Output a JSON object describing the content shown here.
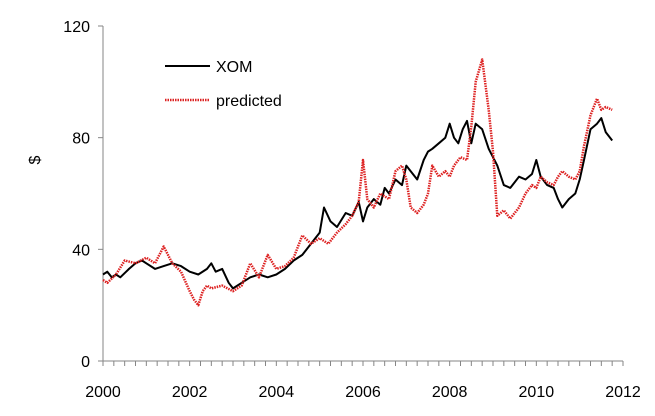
{
  "chart_data": {
    "type": "line",
    "ylabel": "$",
    "xlim": [
      2000,
      2012
    ],
    "ylim": [
      0,
      120
    ],
    "x_ticks": [
      2000,
      2002,
      2004,
      2006,
      2008,
      2010,
      2012
    ],
    "y_ticks": [
      0,
      40,
      80,
      120
    ],
    "legend_position": "top-left",
    "grid": false,
    "series": [
      {
        "name": "XOM",
        "color": "#000000",
        "x": [
          2000.0,
          2000.1,
          2000.2,
          2000.3,
          2000.4,
          2000.6,
          2000.75,
          2000.9,
          2001.0,
          2001.2,
          2001.4,
          2001.6,
          2001.8,
          2002.0,
          2002.2,
          2002.4,
          2002.5,
          2002.6,
          2002.75,
          2002.9,
          2003.0,
          2003.2,
          2003.4,
          2003.6,
          2003.8,
          2004.0,
          2004.2,
          2004.4,
          2004.6,
          2004.8,
          2005.0,
          2005.1,
          2005.25,
          2005.4,
          2005.6,
          2005.75,
          2005.9,
          2006.0,
          2006.1,
          2006.25,
          2006.4,
          2006.5,
          2006.6,
          2006.75,
          2006.9,
          2007.0,
          2007.1,
          2007.25,
          2007.4,
          2007.5,
          2007.6,
          2007.75,
          2007.9,
          2008.0,
          2008.1,
          2008.2,
          2008.3,
          2008.4,
          2008.5,
          2008.6,
          2008.75,
          2008.9,
          2009.0,
          2009.1,
          2009.25,
          2009.4,
          2009.5,
          2009.6,
          2009.75,
          2009.9,
          2010.0,
          2010.1,
          2010.25,
          2010.4,
          2010.5,
          2010.6,
          2010.75,
          2010.9,
          2011.0,
          2011.1,
          2011.25,
          2011.4,
          2011.5,
          2011.6,
          2011.75
        ],
        "y": [
          31,
          32,
          30,
          31,
          30,
          33,
          35,
          36,
          35,
          33,
          34,
          35,
          34,
          32,
          31,
          33,
          35,
          32,
          33,
          28,
          26,
          28,
          30,
          31,
          30,
          31,
          33,
          36,
          38,
          42,
          46,
          55,
          50,
          48,
          53,
          52,
          57,
          50,
          55,
          58,
          56,
          62,
          60,
          65,
          63,
          70,
          68,
          65,
          72,
          75,
          76,
          78,
          80,
          85,
          80,
          78,
          83,
          86,
          78,
          85,
          83,
          76,
          73,
          70,
          63,
          62,
          64,
          66,
          65,
          67,
          72,
          66,
          63,
          62,
          58,
          55,
          58,
          60,
          65,
          72,
          83,
          85,
          87,
          82,
          79
        ]
      },
      {
        "name": "predicted",
        "color": "#dd2222",
        "x": [
          2000.0,
          2000.1,
          2000.3,
          2000.5,
          2000.75,
          2001.0,
          2001.2,
          2001.4,
          2001.6,
          2001.8,
          2002.0,
          2002.1,
          2002.2,
          2002.3,
          2002.4,
          2002.5,
          2002.75,
          2003.0,
          2003.2,
          2003.4,
          2003.6,
          2003.8,
          2004.0,
          2004.2,
          2004.4,
          2004.6,
          2004.8,
          2005.0,
          2005.2,
          2005.4,
          2005.6,
          2005.75,
          2005.9,
          2006.0,
          2006.1,
          2006.25,
          2006.4,
          2006.6,
          2006.75,
          2006.9,
          2007.0,
          2007.1,
          2007.25,
          2007.4,
          2007.5,
          2007.6,
          2007.75,
          2007.9,
          2008.0,
          2008.1,
          2008.25,
          2008.4,
          2008.5,
          2008.6,
          2008.75,
          2008.9,
          2009.0,
          2009.1,
          2009.25,
          2009.4,
          2009.5,
          2009.6,
          2009.75,
          2009.9,
          2010.0,
          2010.1,
          2010.25,
          2010.4,
          2010.5,
          2010.6,
          2010.75,
          2010.9,
          2011.0,
          2011.1,
          2011.25,
          2011.4,
          2011.5,
          2011.6,
          2011.75
        ],
        "y": [
          29,
          28,
          31,
          36,
          35,
          37,
          35,
          41,
          35,
          32,
          25,
          22,
          20,
          25,
          27,
          26,
          27,
          25,
          27,
          35,
          30,
          38,
          33,
          34,
          37,
          45,
          42,
          44,
          42,
          46,
          49,
          52,
          57,
          72,
          58,
          55,
          60,
          58,
          68,
          70,
          65,
          55,
          53,
          56,
          60,
          70,
          66,
          68,
          66,
          70,
          73,
          72,
          84,
          100,
          108,
          90,
          75,
          52,
          54,
          51,
          53,
          55,
          60,
          63,
          62,
          66,
          64,
          63,
          66,
          68,
          66,
          65,
          68,
          77,
          88,
          94,
          90,
          91,
          90
        ]
      }
    ]
  }
}
